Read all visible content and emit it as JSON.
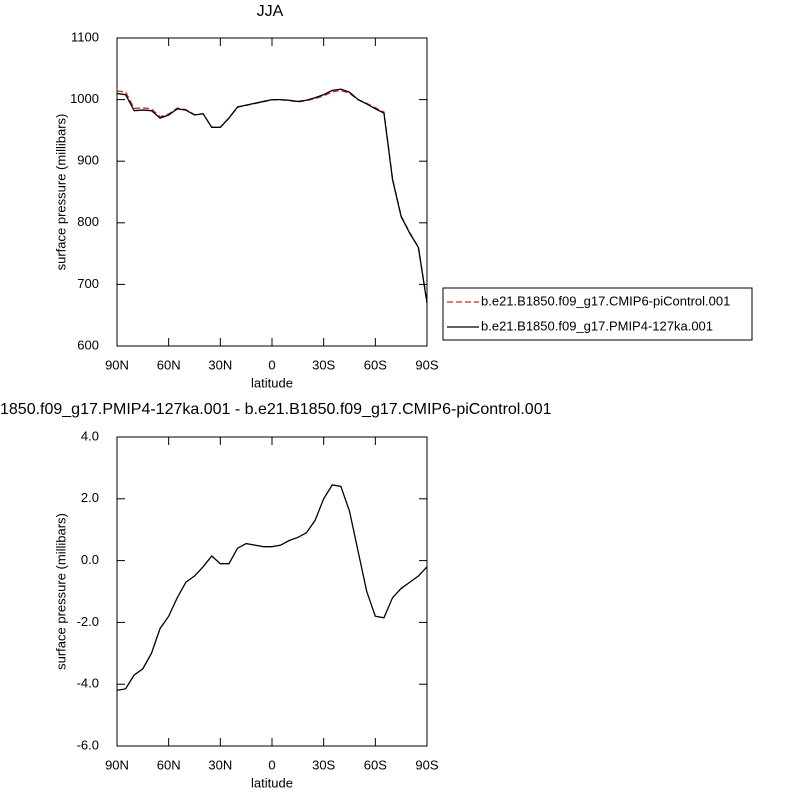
{
  "chart_data": [
    {
      "type": "line",
      "title": "JJA",
      "xlabel": "latitude",
      "ylabel": "surface pressure (millibars)",
      "x": [
        90,
        85,
        80,
        75,
        70,
        65,
        60,
        55,
        50,
        45,
        40,
        35,
        30,
        25,
        20,
        15,
        10,
        5,
        0,
        -5,
        -10,
        -15,
        -20,
        -25,
        -30,
        -35,
        -40,
        -45,
        -50,
        -55,
        -60,
        -65,
        -70,
        -75,
        -80,
        -85,
        -90
      ],
      "series": [
        {
          "name": "b.e21.B1850.f09_g17.CMIP6-piControl.001",
          "color": "#d62728",
          "linestyle": "dashed",
          "values": [
            1014.2,
            1012.2,
            985.7,
            986.5,
            985,
            972.2,
            976.8,
            986.2,
            983.7,
            975.5,
            977.2,
            954.9,
            955.1,
            970.1,
            987.6,
            990.5,
            993.5,
            996.6,
            999.6,
            999.5,
            998.4,
            996.3,
            998.1,
            1001.7,
            1006,
            1012.6,
            1014.6,
            1010.4,
            999.7,
            994,
            986.8,
            979.9,
            871.2,
            810.9,
            783.9,
            760.5,
            670.2
          ]
        },
        {
          "name": "b.e21.B1850.f09_g17.PMIP4-127ka.001",
          "color": "#000000",
          "linestyle": "solid",
          "values": [
            1010,
            1008,
            982,
            983,
            982,
            970,
            975,
            985,
            983,
            975,
            977,
            955,
            955,
            970,
            988,
            991,
            994,
            997,
            1000,
            1000,
            999,
            997,
            999,
            1003,
            1008,
            1015,
            1017,
            1012,
            1000,
            993,
            985,
            978,
            870,
            810,
            783,
            760,
            670
          ]
        }
      ],
      "xlim": [
        90,
        -90
      ],
      "xticks": [
        {
          "value": 90,
          "label": "90N"
        },
        {
          "value": 60,
          "label": "60N"
        },
        {
          "value": 30,
          "label": "30N"
        },
        0,
        {
          "value": -30,
          "label": "30S"
        },
        {
          "value": -60,
          "label": "60S"
        },
        {
          "value": -90,
          "label": "90S"
        }
      ],
      "ylim": [
        600,
        1100
      ],
      "yticks": [
        600,
        700,
        800,
        900,
        1000,
        1100
      ],
      "legend": "right"
    },
    {
      "type": "line",
      "title": "1850.f09_g17.PMIP4-127ka.001 - b.e21.B1850.f09_g17.CMIP6-piControl.001",
      "xlabel": "latitude",
      "ylabel": "surface pressure (millibars)",
      "x": [
        90,
        85,
        80,
        75,
        70,
        65,
        60,
        55,
        50,
        45,
        40,
        35,
        30,
        25,
        20,
        15,
        10,
        5,
        0,
        -5,
        -10,
        -15,
        -20,
        -25,
        -30,
        -35,
        -40,
        -45,
        -50,
        -55,
        -60,
        -65,
        -70,
        -75,
        -80,
        -85,
        -90
      ],
      "series": [
        {
          "color": "#000000",
          "linestyle": "solid",
          "values": [
            -4.2,
            -4.15,
            -3.7,
            -3.5,
            -3.0,
            -2.2,
            -1.8,
            -1.2,
            -0.7,
            -0.5,
            -0.2,
            0.15,
            -0.1,
            -0.1,
            0.4,
            0.55,
            0.5,
            0.45,
            0.45,
            0.5,
            0.65,
            0.75,
            0.9,
            1.3,
            2.0,
            2.45,
            2.4,
            1.6,
            0.3,
            -1.0,
            -1.8,
            -1.85,
            -1.2,
            -0.9,
            -0.7,
            -0.5,
            -0.2
          ]
        }
      ],
      "xlim": [
        90,
        -90
      ],
      "xticks": [
        {
          "value": 90,
          "label": "90N"
        },
        {
          "value": 60,
          "label": "60N"
        },
        {
          "value": 30,
          "label": "30N"
        },
        0,
        {
          "value": -30,
          "label": "30S"
        },
        {
          "value": -60,
          "label": "60S"
        },
        {
          "value": -90,
          "label": "90S"
        }
      ],
      "ylim": [
        -6,
        4
      ],
      "yticks": [
        {
          "value": -6,
          "label": "-6.0"
        },
        {
          "value": -4,
          "label": "-4.0"
        },
        {
          "value": -2,
          "label": "-2.0"
        },
        {
          "value": 0,
          "label": "0.0"
        },
        {
          "value": 2,
          "label": "2.0"
        },
        {
          "value": 4,
          "label": "4.0"
        }
      ]
    }
  ]
}
